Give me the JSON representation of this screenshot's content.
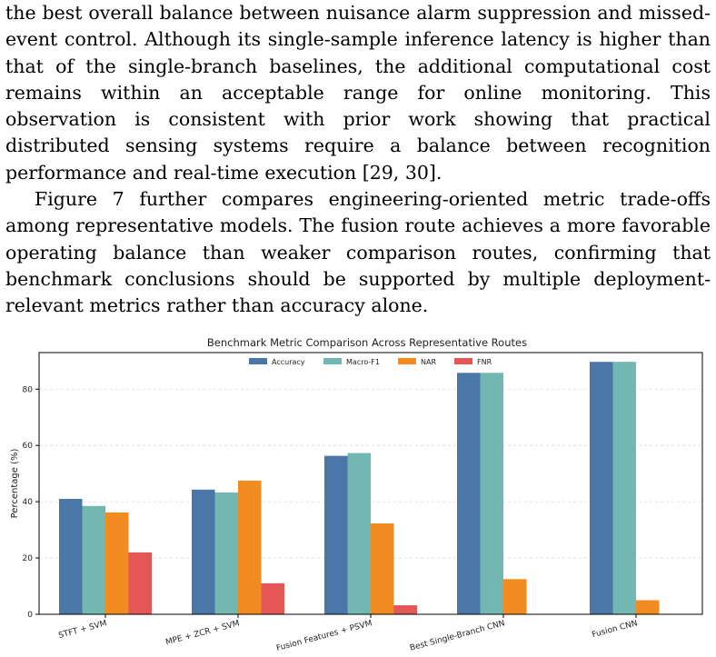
{
  "paragraphs": [
    "the best overall balance between nuisance alarm suppression and missed-event control. Although its single-sample inference latency is higher than that of the single-branch baselines, the additional computational cost remains within an acceptable range for online monitoring. This observation is consistent with prior work showing that practical distributed sensing systems require a balance between recognition performance and real-time execution [29, 30].",
    "Figure 7 further compares engineering-oriented metric trade-offs among representative models. The fusion route achieves a more favorable operating balance than weaker comparison routes, confirming that benchmark conclusions should be supported by multiple deployment-relevant metrics rather than accuracy alone."
  ],
  "chart_data": {
    "type": "bar",
    "title": "Benchmark Metric Comparison Across Representative Routes",
    "xlabel": "",
    "ylabel": "Percentage (%)",
    "ylim": [
      0,
      93
    ],
    "yticks": [
      0,
      20,
      40,
      60,
      80
    ],
    "grid": "horizontal dashed",
    "legend_position": "top-center",
    "categories": [
      "STFT + SVM",
      "MPE + ZCR + SVM",
      "Fusion Features + PSVM",
      "Best Single-Branch CNN",
      "Fusion CNN"
    ],
    "series": [
      {
        "name": "Accuracy",
        "color": "#4a76a8",
        "values": [
          41,
          44.3,
          56.3,
          85.8,
          89.7
        ]
      },
      {
        "name": "Macro-F1",
        "color": "#72b7b2",
        "values": [
          38.5,
          43.3,
          57.3,
          85.8,
          89.7
        ]
      },
      {
        "name": "NAR",
        "color": "#f28b22",
        "values": [
          36.2,
          47.5,
          32.3,
          12.5,
          5
        ]
      },
      {
        "name": "FNR",
        "color": "#e45756",
        "values": [
          22,
          11,
          3.2,
          0,
          0
        ]
      }
    ]
  }
}
